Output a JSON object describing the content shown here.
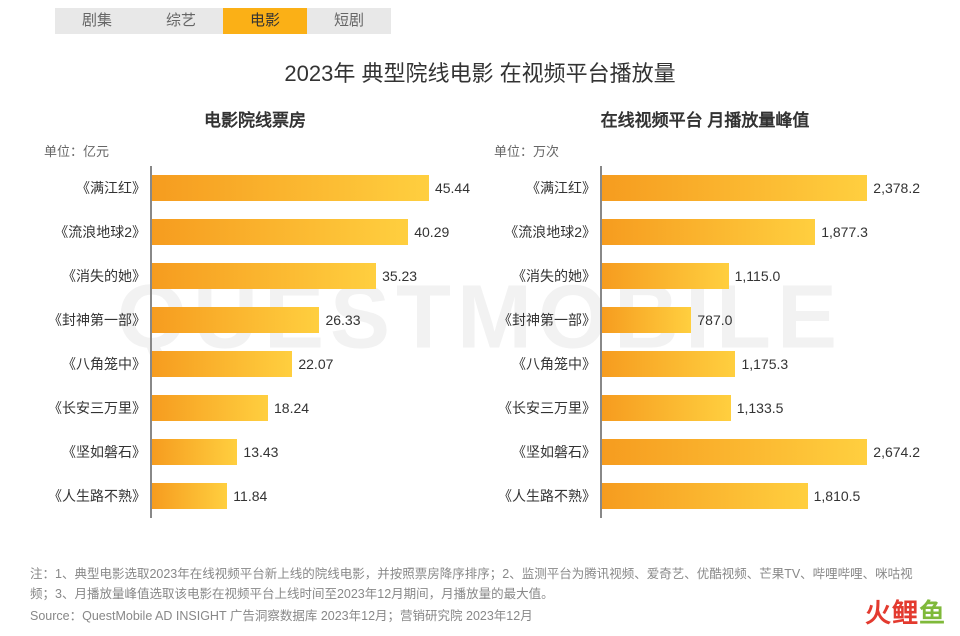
{
  "watermark": "QUESTMOBILE",
  "tabs": [
    {
      "label": "剧集",
      "active": false
    },
    {
      "label": "综艺",
      "active": false
    },
    {
      "label": "电影",
      "active": true
    },
    {
      "label": "短剧",
      "active": false
    }
  ],
  "title": "2023年 典型院线电影 在视频平台播放量",
  "charts": {
    "left": {
      "type": "bar-horizontal",
      "title": "电影院线票房",
      "unit": "单位：亿元",
      "max": 50,
      "bar_gradient": [
        "#f69c1f",
        "#ffcf3f"
      ],
      "axis_color": "#888888",
      "items": [
        {
          "label": "《满江红》",
          "value": 45.44,
          "display": "45.44"
        },
        {
          "label": "《流浪地球2》",
          "value": 40.29,
          "display": "40.29"
        },
        {
          "label": "《消失的她》",
          "value": 35.23,
          "display": "35.23"
        },
        {
          "label": "《封神第一部》",
          "value": 26.33,
          "display": "26.33"
        },
        {
          "label": "《八角笼中》",
          "value": 22.07,
          "display": "22.07"
        },
        {
          "label": "《长安三万里》",
          "value": 18.24,
          "display": "18.24"
        },
        {
          "label": "《坚如磐石》",
          "value": 13.43,
          "display": "13.43"
        },
        {
          "label": "《人生路不熟》",
          "value": 11.84,
          "display": "11.84"
        }
      ]
    },
    "right": {
      "type": "bar-horizontal",
      "title": "在线视频平台 月播放量峰值",
      "unit": "单位：万次",
      "max": 2800,
      "bar_gradient": [
        "#f69c1f",
        "#ffcf3f"
      ],
      "axis_color": "#888888",
      "items": [
        {
          "label": "《满江红》",
          "value": 2378.2,
          "display": "2,378.2"
        },
        {
          "label": "《流浪地球2》",
          "value": 1877.3,
          "display": "1,877.3"
        },
        {
          "label": "《消失的她》",
          "value": 1115.0,
          "display": "1,115.0"
        },
        {
          "label": "《封神第一部》",
          "value": 787.0,
          "display": "787.0"
        },
        {
          "label": "《八角笼中》",
          "value": 1175.3,
          "display": "1,175.3"
        },
        {
          "label": "《长安三万里》",
          "value": 1133.5,
          "display": "1,133.5"
        },
        {
          "label": "《坚如磐石》",
          "value": 2674.2,
          "display": "2,674.2"
        },
        {
          "label": "《人生路不熟》",
          "value": 1810.5,
          "display": "1,810.5"
        }
      ]
    }
  },
  "footnote": "注：1、典型电影选取2023年在线视频平台新上线的院线电影，并按照票房降序排序；2、监测平台为腾讯视频、爱奇艺、优酷视频、芒果TV、哔哩哔哩、咪咕视频；3、月播放量峰值选取该电影在视频平台上线时间至2023年12月期间，月播放量的最大值。",
  "source": "Source：QuestMobile AD INSIGHT 广告洞察数据库 2023年12月；营销研究院 2023年12月",
  "corner_logo": {
    "part1": "火鲤",
    "part2": "鱼",
    "color1": "#e33a2f",
    "color2": "#7fb93a"
  }
}
